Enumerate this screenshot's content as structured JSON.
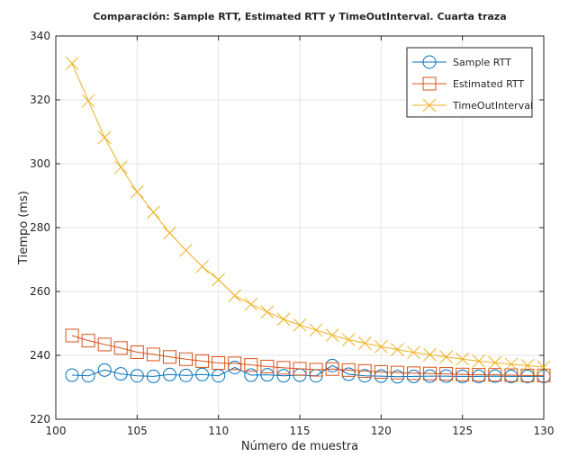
{
  "chart_data": {
    "type": "line",
    "title": "Comparación: Sample RTT, Estimated RTT y TimeOutInterval. Cuarta traza",
    "xlabel": "Número de muestra",
    "ylabel": "Tiempo (ms)",
    "xlim": [
      100,
      130
    ],
    "ylim": [
      220,
      340
    ],
    "xticks": [
      100,
      105,
      110,
      115,
      120,
      125,
      130
    ],
    "yticks": [
      220,
      240,
      260,
      280,
      300,
      320,
      340
    ],
    "grid": true,
    "legend_position": "top-right",
    "x": [
      101,
      102,
      103,
      104,
      105,
      106,
      107,
      108,
      109,
      110,
      111,
      112,
      113,
      114,
      115,
      116,
      117,
      118,
      119,
      120,
      121,
      122,
      123,
      124,
      125,
      126,
      127,
      128,
      129,
      130
    ],
    "series": [
      {
        "name": "Sample RTT",
        "color": "#0072bd",
        "marker": "circle",
        "values": [
          233.8,
          233.6,
          235.4,
          234.2,
          233.6,
          233.4,
          234.0,
          233.7,
          234.0,
          233.6,
          236.2,
          233.8,
          233.9,
          233.6,
          233.8,
          233.6,
          236.8,
          234.1,
          233.6,
          233.5,
          233.3,
          233.4,
          233.5,
          233.5,
          233.4,
          233.4,
          233.5,
          233.4,
          233.4,
          233.4
        ]
      },
      {
        "name": "Estimated RTT",
        "color": "#d95319",
        "marker": "square",
        "values": [
          246.2,
          244.6,
          243.4,
          242.3,
          241.0,
          240.3,
          239.5,
          238.8,
          238.2,
          237.6,
          237.5,
          237.0,
          236.5,
          236.1,
          235.8,
          235.5,
          235.7,
          235.4,
          235.1,
          234.8,
          234.6,
          234.4,
          234.3,
          234.2,
          234.0,
          233.9,
          233.9,
          233.8,
          233.7,
          233.7
        ]
      },
      {
        "name": "TimeOutInterval",
        "color": "#edb120",
        "marker": "x",
        "values": [
          331.4,
          319.7,
          308.2,
          298.9,
          291.2,
          284.8,
          278.3,
          272.9,
          267.8,
          263.7,
          258.7,
          256.0,
          253.6,
          251.3,
          249.5,
          247.9,
          246.3,
          244.9,
          243.8,
          242.7,
          241.8,
          240.9,
          240.2,
          239.5,
          238.8,
          238.2,
          237.7,
          237.2,
          236.8,
          236.3
        ]
      }
    ]
  }
}
